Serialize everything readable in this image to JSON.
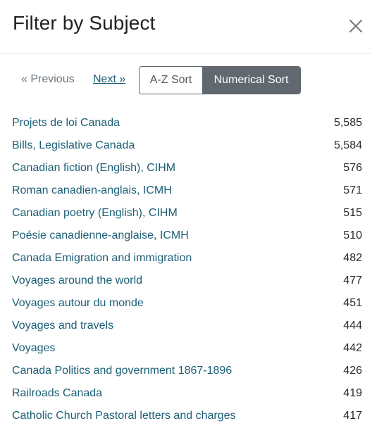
{
  "modal": {
    "title": "Filter by Subject",
    "close_icon": "close-icon"
  },
  "pager": {
    "previous_label": "« Previous",
    "next_label": "Next »"
  },
  "sort": {
    "az_label": "A-Z Sort",
    "numerical_label": "Numerical Sort",
    "active": "numerical"
  },
  "items": [
    {
      "label": "Projets de loi Canada",
      "count": "5,585"
    },
    {
      "label": "Bills, Legislative Canada",
      "count": "5,584"
    },
    {
      "label": "Canadian fiction (English), CIHM",
      "count": "576"
    },
    {
      "label": "Roman canadien-anglais, ICMH",
      "count": "571"
    },
    {
      "label": "Canadian poetry (English), CIHM",
      "count": "515"
    },
    {
      "label": "Poésie canadienne-anglaise, ICMH",
      "count": "510"
    },
    {
      "label": "Canada Emigration and immigration",
      "count": "482"
    },
    {
      "label": "Voyages around the world",
      "count": "477"
    },
    {
      "label": "Voyages autour du monde",
      "count": "451"
    },
    {
      "label": "Voyages and travels",
      "count": "444"
    },
    {
      "label": "Voyages",
      "count": "442"
    },
    {
      "label": "Canada Politics and government 1867-1896",
      "count": "426"
    },
    {
      "label": "Railroads Canada",
      "count": "419"
    },
    {
      "label": "Catholic Church Pastoral letters and charges",
      "count": "417"
    }
  ],
  "colors": {
    "link": "#1b5e76",
    "active_sort_bg": "#626870"
  }
}
